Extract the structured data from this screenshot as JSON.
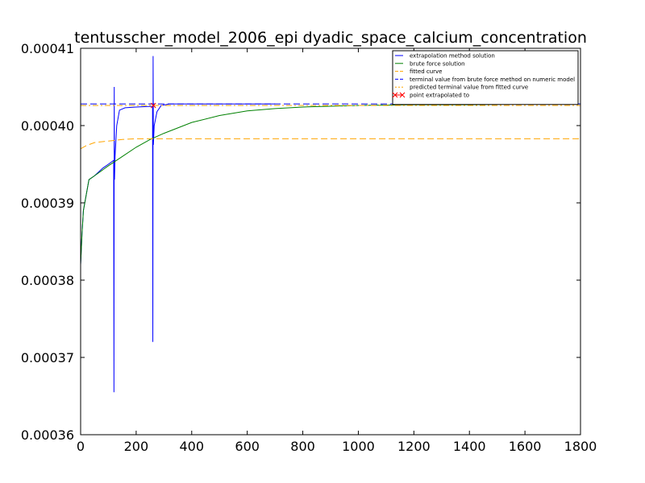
{
  "chart_data": {
    "type": "line",
    "title": "tentusscher_model_2006_epi dyadic_space_calcium_concentration",
    "xlabel": "",
    "ylabel": "",
    "xlim": [
      0,
      1800
    ],
    "ylim": [
      0.00036,
      0.00041
    ],
    "x_ticks": [
      0,
      200,
      400,
      600,
      800,
      1000,
      1200,
      1400,
      1600,
      1800
    ],
    "x_tick_labels": [
      "0",
      "200",
      "400",
      "600",
      "800",
      "1000",
      "1200",
      "1400",
      "1600",
      "1800"
    ],
    "y_ticks": [
      0.00036,
      0.00037,
      0.00038,
      0.00039,
      0.0004,
      0.00041
    ],
    "y_tick_labels": [
      "0.00036",
      "0.00037",
      "0.00038",
      "0.00039",
      "0.00040",
      "0.00041"
    ],
    "grid": false,
    "legend_position": "top-right",
    "series": [
      {
        "name": "extrapolation method solution",
        "color": "#0000ff",
        "style": "solid",
        "points": [
          [
            0,
            0.000382
          ],
          [
            5,
            0.000386
          ],
          [
            10,
            0.000389
          ],
          [
            20,
            0.000391
          ],
          [
            30,
            0.000393
          ],
          [
            50,
            0.0003935
          ],
          [
            80,
            0.0003945
          ],
          [
            100,
            0.000395
          ],
          [
            119,
            0.0003955
          ],
          [
            120,
            0.0003655
          ],
          [
            121,
            0.000405
          ],
          [
            122,
            0.000393
          ],
          [
            124,
            0.000396
          ],
          [
            130,
            0.0004
          ],
          [
            140,
            0.000402
          ],
          [
            160,
            0.0004023
          ],
          [
            200,
            0.0004024
          ],
          [
            259,
            0.0004025
          ],
          [
            260,
            0.000372
          ],
          [
            261,
            0.000409
          ],
          [
            262,
            0.0003975
          ],
          [
            265,
            0.0004
          ],
          [
            275,
            0.0004018
          ],
          [
            290,
            0.0004026
          ],
          [
            320,
            0.0004028
          ],
          [
            500,
            0.0004028
          ],
          [
            700,
            0.0004028
          ]
        ]
      },
      {
        "name": "brute force solution",
        "color": "#008000",
        "style": "solid",
        "points": [
          [
            0,
            0.000382
          ],
          [
            5,
            0.000386
          ],
          [
            10,
            0.000389
          ],
          [
            20,
            0.000391
          ],
          [
            30,
            0.000393
          ],
          [
            50,
            0.0003935
          ],
          [
            100,
            0.0003948
          ],
          [
            150,
            0.000396
          ],
          [
            200,
            0.0003972
          ],
          [
            250,
            0.0003982
          ],
          [
            300,
            0.000399
          ],
          [
            400,
            0.0004004
          ],
          [
            500,
            0.0004013
          ],
          [
            600,
            0.0004019
          ],
          [
            700,
            0.0004022
          ],
          [
            800,
            0.0004024
          ],
          [
            1000,
            0.0004026
          ],
          [
            1200,
            0.0004027
          ],
          [
            1400,
            0.0004027
          ],
          [
            1600,
            0.0004028
          ],
          [
            1800,
            0.0004028
          ]
        ]
      },
      {
        "name": "fitted curve",
        "color": "#ffa500",
        "style": "dashed",
        "points": [
          [
            0,
            0.000397
          ],
          [
            20,
            0.0003974
          ],
          [
            50,
            0.0003978
          ],
          [
            100,
            0.000398
          ],
          [
            150,
            0.0003982
          ],
          [
            200,
            0.0003983
          ],
          [
            300,
            0.0003983
          ],
          [
            600,
            0.0003983
          ],
          [
            1000,
            0.0003983
          ],
          [
            1400,
            0.0003983
          ],
          [
            1800,
            0.0003983
          ]
        ]
      },
      {
        "name": "terminal value from brute force method on numeric model",
        "color": "#0000ff",
        "style": "dashed",
        "constant": 0.0004028
      },
      {
        "name": "predicted terminal value from fitted curve",
        "color": "#ffa500",
        "style": "dashdot",
        "constant": 0.0004026
      },
      {
        "name": "point extrapolated to",
        "color": "#ff0000",
        "style": "marker-x",
        "points": [
          [
            262,
            0.0004026
          ]
        ]
      }
    ]
  }
}
